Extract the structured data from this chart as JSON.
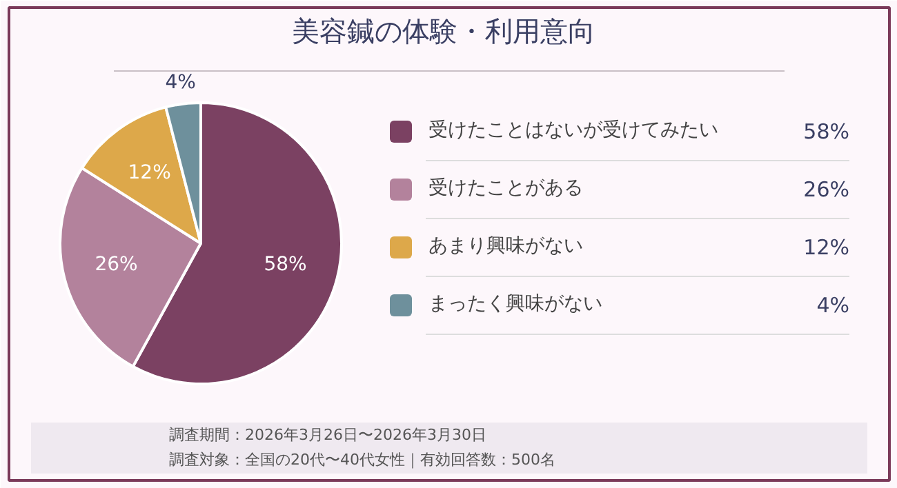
{
  "chart_data": {
    "type": "pie",
    "title": "美容鍼の体験・利用意向",
    "categories": [
      "受けたことはないが受けてみたい",
      "受けたことがある",
      "あまり興味がない",
      "まったく興味がない"
    ],
    "values": [
      58,
      26,
      12,
      4
    ],
    "value_labels": [
      "58%",
      "26%",
      "12%",
      "4%"
    ],
    "colors": [
      "#7b4162",
      "#b3829c",
      "#dda84a",
      "#6e909c"
    ],
    "legend": "right",
    "annotations": [
      "調査期間：2026年3月26日〜2026年3月30日",
      "調査対象：全国の20代〜40代女性｜有効回答数：500名"
    ]
  }
}
